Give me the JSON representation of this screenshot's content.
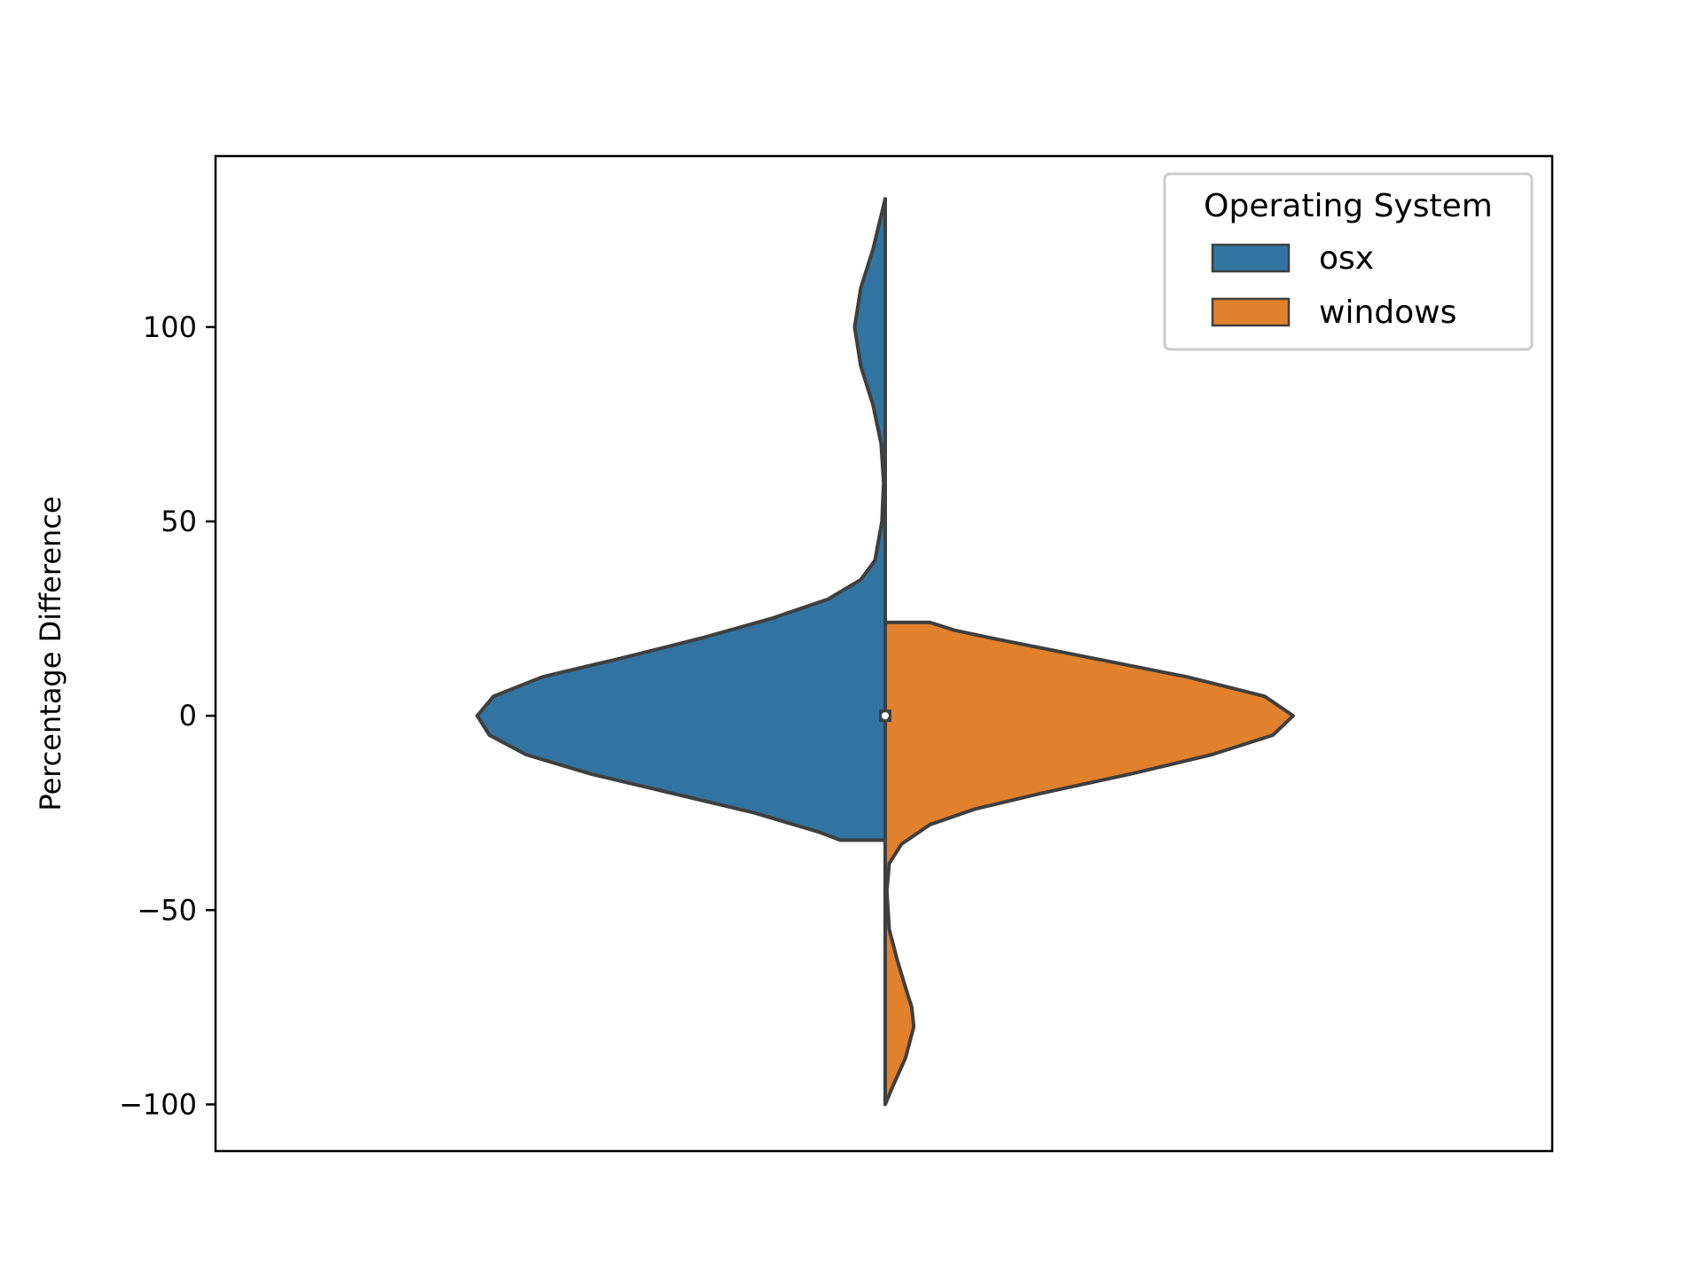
{
  "chart_data": {
    "type": "violin",
    "split": true,
    "ylabel": "Percentage Difference",
    "xlabel": "",
    "ylim": [
      -112,
      144
    ],
    "yticks": [
      -100,
      -50,
      0,
      50,
      100
    ],
    "ytick_labels": [
      "−100",
      "−50",
      "0",
      "50",
      "100"
    ],
    "grid": false,
    "legend": {
      "title": "Operating System",
      "placement": "top-right",
      "entries": [
        "osx",
        "windows"
      ]
    },
    "series": [
      {
        "name": "osx",
        "color": "#3274a1",
        "side": "left",
        "range": [
          -32,
          133
        ],
        "density_profile": [
          {
            "y": -32,
            "d": 0.11
          },
          {
            "y": -30,
            "d": 0.16
          },
          {
            "y": -25,
            "d": 0.32
          },
          {
            "y": -20,
            "d": 0.52
          },
          {
            "y": -15,
            "d": 0.72
          },
          {
            "y": -10,
            "d": 0.88
          },
          {
            "y": -5,
            "d": 0.97
          },
          {
            "y": 0,
            "d": 1.0
          },
          {
            "y": 5,
            "d": 0.96
          },
          {
            "y": 10,
            "d": 0.84
          },
          {
            "y": 15,
            "d": 0.64
          },
          {
            "y": 20,
            "d": 0.45
          },
          {
            "y": 25,
            "d": 0.28
          },
          {
            "y": 30,
            "d": 0.14
          },
          {
            "y": 35,
            "d": 0.06
          },
          {
            "y": 40,
            "d": 0.025
          },
          {
            "y": 50,
            "d": 0.008
          },
          {
            "y": 60,
            "d": 0.004
          },
          {
            "y": 70,
            "d": 0.01
          },
          {
            "y": 80,
            "d": 0.03
          },
          {
            "y": 90,
            "d": 0.06
          },
          {
            "y": 100,
            "d": 0.075
          },
          {
            "y": 110,
            "d": 0.06
          },
          {
            "y": 120,
            "d": 0.03
          },
          {
            "y": 133,
            "d": 0.0
          }
        ]
      },
      {
        "name": "windows",
        "color": "#e1812c",
        "side": "right",
        "range": [
          -100,
          24
        ],
        "density_profile": [
          {
            "y": -100,
            "d": 0.0
          },
          {
            "y": -95,
            "d": 0.02
          },
          {
            "y": -88,
            "d": 0.05
          },
          {
            "y": -80,
            "d": 0.07
          },
          {
            "y": -75,
            "d": 0.065
          },
          {
            "y": -70,
            "d": 0.05
          },
          {
            "y": -63,
            "d": 0.03
          },
          {
            "y": -55,
            "d": 0.01
          },
          {
            "y": -45,
            "d": 0.004
          },
          {
            "y": -38,
            "d": 0.01
          },
          {
            "y": -33,
            "d": 0.04
          },
          {
            "y": -28,
            "d": 0.11
          },
          {
            "y": -24,
            "d": 0.22
          },
          {
            "y": -20,
            "d": 0.38
          },
          {
            "y": -15,
            "d": 0.6
          },
          {
            "y": -10,
            "d": 0.8
          },
          {
            "y": -5,
            "d": 0.95
          },
          {
            "y": 0,
            "d": 1.0
          },
          {
            "y": 5,
            "d": 0.93
          },
          {
            "y": 10,
            "d": 0.74
          },
          {
            "y": 15,
            "d": 0.5
          },
          {
            "y": 20,
            "d": 0.26
          },
          {
            "y": 22,
            "d": 0.17
          },
          {
            "y": 24,
            "d": 0.11
          }
        ]
      }
    ],
    "median": 0
  }
}
